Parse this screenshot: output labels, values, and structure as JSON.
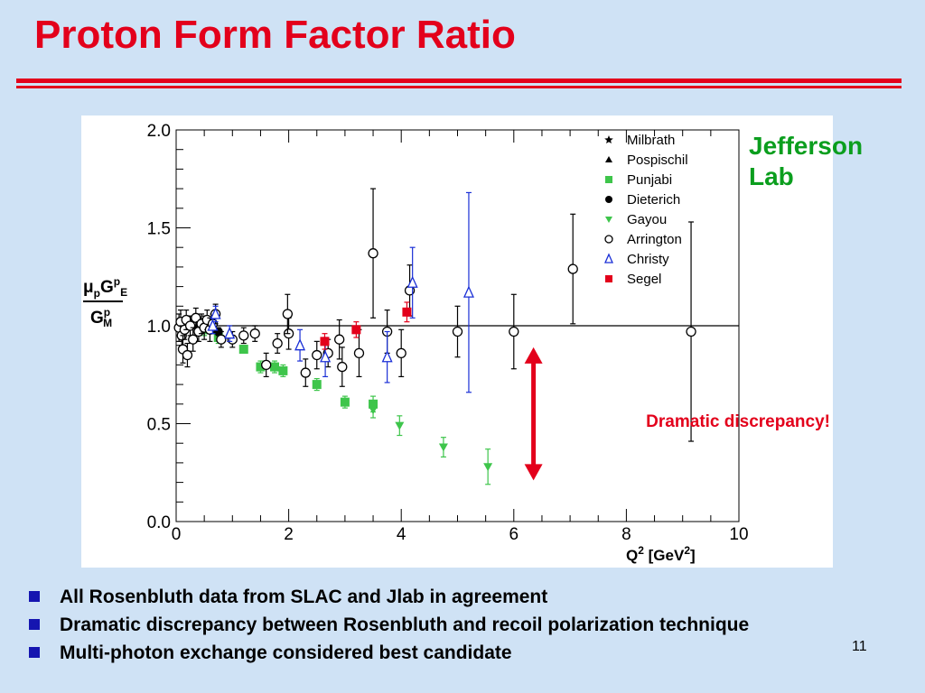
{
  "slide": {
    "title": "Proton Form Factor Ratio",
    "lab_label": "Jefferson Lab",
    "bullets": [
      "All Rosenbluth data from SLAC and Jlab in agreement",
      "Dramatic discrepancy between Rosenbluth and recoil polarization technique",
      "Multi-photon exchange considered best candidate"
    ],
    "page_number": "11",
    "colors": {
      "title": "#e3001b",
      "lab": "#0b9e1e",
      "bullet": "#1515b0",
      "background": "#cfe2f5"
    }
  },
  "chart_data": {
    "type": "scatter",
    "title": "",
    "xlabel": "Q",
    "xlabel_sup": "2",
    "xlabel_unit": "[GeV",
    "xlabel_unit_sup": "2",
    "xlabel_unit_close": "]",
    "ylabel": {
      "mu": "μ",
      "p": "p",
      "G": "G",
      "E": "E",
      "sup": "p",
      "M": "M"
    },
    "xlim": [
      0,
      10
    ],
    "ylim": [
      0,
      2
    ],
    "xticks": [
      "0",
      "2",
      "4",
      "6",
      "8",
      "10"
    ],
    "yticks": [
      "0.0",
      "0.5",
      "1.0",
      "1.5",
      "2.0"
    ],
    "reference_line": 1.0,
    "legend_position": "top-right",
    "annotation": {
      "text": "Dramatic discrepancy!",
      "color": "#e3001b",
      "arrow_x": 6.35,
      "arrow_y": [
        0.21,
        0.89
      ]
    },
    "series": [
      {
        "name": "Milbrath",
        "marker": "star",
        "color": "#000000",
        "points": []
      },
      {
        "name": "Pospischil",
        "marker": "triangle-filled",
        "color": "#000000",
        "points": []
      },
      {
        "name": "Punjabi",
        "marker": "square-filled",
        "color": "#3ec54b",
        "points": [
          {
            "x": 0.5,
            "y": 0.98,
            "err": 0.03
          },
          {
            "x": 0.75,
            "y": 0.94,
            "err": 0.03
          },
          {
            "x": 1.2,
            "y": 0.88,
            "err": 0.02
          },
          {
            "x": 1.5,
            "y": 0.79,
            "err": 0.03
          },
          {
            "x": 1.75,
            "y": 0.79,
            "err": 0.03
          },
          {
            "x": 1.9,
            "y": 0.77,
            "err": 0.03
          },
          {
            "x": 2.5,
            "y": 0.7,
            "err": 0.03
          },
          {
            "x": 3.0,
            "y": 0.61,
            "err": 0.03
          },
          {
            "x": 3.5,
            "y": 0.6,
            "err": 0.04
          }
        ]
      },
      {
        "name": "Dieterich",
        "marker": "circle-filled",
        "color": "#000000",
        "points": [
          {
            "x": 0.4,
            "y": 0.99,
            "err": 0.02
          },
          {
            "x": 0.75,
            "y": 0.97,
            "err": 0.02
          }
        ]
      },
      {
        "name": "Gayou",
        "marker": "triangle-down-filled",
        "color": "#3ec54b",
        "points": [
          {
            "x": 3.5,
            "y": 0.57,
            "err": 0.04
          },
          {
            "x": 3.97,
            "y": 0.49,
            "err": 0.05
          },
          {
            "x": 4.75,
            "y": 0.38,
            "err": 0.05
          },
          {
            "x": 5.54,
            "y": 0.28,
            "err": 0.09
          }
        ]
      },
      {
        "name": "Arrington",
        "marker": "circle-open",
        "color": "#000000",
        "points": [
          {
            "x": 0.05,
            "y": 0.99,
            "err": 0.07
          },
          {
            "x": 0.08,
            "y": 1.02,
            "err": 0.06
          },
          {
            "x": 0.1,
            "y": 0.95,
            "err": 0.05
          },
          {
            "x": 0.12,
            "y": 0.88,
            "err": 0.07
          },
          {
            "x": 0.15,
            "y": 0.98,
            "err": 0.05
          },
          {
            "x": 0.18,
            "y": 1.03,
            "err": 0.05
          },
          {
            "x": 0.2,
            "y": 0.85,
            "err": 0.06
          },
          {
            "x": 0.25,
            "y": 1.0,
            "err": 0.05
          },
          {
            "x": 0.3,
            "y": 0.93,
            "err": 0.06
          },
          {
            "x": 0.35,
            "y": 1.04,
            "err": 0.05
          },
          {
            "x": 0.4,
            "y": 0.97,
            "err": 0.05
          },
          {
            "x": 0.45,
            "y": 1.01,
            "err": 0.05
          },
          {
            "x": 0.5,
            "y": 0.99,
            "err": 0.06
          },
          {
            "x": 0.55,
            "y": 1.03,
            "err": 0.05
          },
          {
            "x": 0.6,
            "y": 0.98,
            "err": 0.06
          },
          {
            "x": 0.65,
            "y": 1.01,
            "err": 0.05
          },
          {
            "x": 0.7,
            "y": 1.06,
            "err": 0.05
          },
          {
            "x": 0.8,
            "y": 0.93,
            "err": 0.04
          },
          {
            "x": 1.0,
            "y": 0.93,
            "err": 0.04
          },
          {
            "x": 1.2,
            "y": 0.95,
            "err": 0.04
          },
          {
            "x": 1.4,
            "y": 0.96,
            "err": 0.04
          },
          {
            "x": 1.6,
            "y": 0.8,
            "err": 0.06
          },
          {
            "x": 1.8,
            "y": 0.91,
            "err": 0.05
          },
          {
            "x": 2.0,
            "y": 0.96,
            "err": 0.08
          },
          {
            "x": 1.98,
            "y": 1.06,
            "err": 0.1
          },
          {
            "x": 2.3,
            "y": 0.76,
            "err": 0.07
          },
          {
            "x": 2.5,
            "y": 0.85,
            "err": 0.07
          },
          {
            "x": 2.7,
            "y": 0.86,
            "err": 0.07
          },
          {
            "x": 2.95,
            "y": 0.79,
            "err": 0.1
          },
          {
            "x": 2.9,
            "y": 0.93,
            "err": 0.1
          },
          {
            "x": 3.25,
            "y": 0.86,
            "err": 0.12
          },
          {
            "x": 3.5,
            "y": 1.37,
            "err": 0.33
          },
          {
            "x": 3.75,
            "y": 0.97,
            "err": 0.11
          },
          {
            "x": 4.0,
            "y": 0.86,
            "err": 0.12
          },
          {
            "x": 4.15,
            "y": 1.18,
            "err": 0.13
          },
          {
            "x": 5.0,
            "y": 0.97,
            "err": 0.13
          },
          {
            "x": 6.0,
            "y": 0.97,
            "err": 0.19
          },
          {
            "x": 7.05,
            "y": 1.29,
            "err": 0.28
          },
          {
            "x": 9.15,
            "y": 0.97,
            "err": 0.56
          }
        ]
      },
      {
        "name": "Christy",
        "marker": "triangle-open",
        "color": "#1a2fd6",
        "points": [
          {
            "x": 0.65,
            "y": 1.0,
            "err": 0.04
          },
          {
            "x": 0.7,
            "y": 1.06,
            "err": 0.04
          },
          {
            "x": 0.95,
            "y": 0.96,
            "err": 0.04
          },
          {
            "x": 2.2,
            "y": 0.9,
            "err": 0.08
          },
          {
            "x": 2.65,
            "y": 0.84,
            "err": 0.1
          },
          {
            "x": 3.75,
            "y": 0.84,
            "err": 0.13
          },
          {
            "x": 4.2,
            "y": 1.22,
            "err": 0.18
          },
          {
            "x": 5.2,
            "y": 1.17,
            "err": 0.51
          }
        ]
      },
      {
        "name": "Segel",
        "marker": "square-filled",
        "color": "#e3001b",
        "points": [
          {
            "x": 2.64,
            "y": 0.92,
            "err": 0.04
          },
          {
            "x": 3.2,
            "y": 0.98,
            "err": 0.04
          },
          {
            "x": 4.1,
            "y": 1.07,
            "err": 0.05
          }
        ]
      }
    ]
  }
}
